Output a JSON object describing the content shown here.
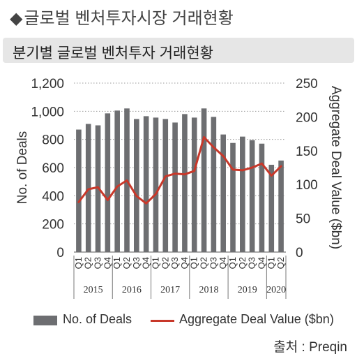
{
  "header": {
    "title": "글로벌 벤처투자시장 거래현황",
    "bullet": "◆"
  },
  "subheader": {
    "title": "분기별 글로벌 벤처투자 거래현황"
  },
  "source": "출처 : Preqin",
  "colors": {
    "bars": "#6d6e71",
    "line": "#c8382a",
    "subbar": "#e6e6e6"
  },
  "chart_data": {
    "type": "bar",
    "categories": [
      "Q1",
      "Q2",
      "Q3",
      "Q4",
      "Q1",
      "Q2",
      "Q3",
      "Q4",
      "Q1",
      "Q2",
      "Q3",
      "Q4",
      "Q1",
      "Q2",
      "Q3",
      "Q4",
      "Q1",
      "Q2",
      "Q3",
      "Q4",
      "Q1",
      "Q2"
    ],
    "years": [
      {
        "label": "2015",
        "count": 4
      },
      {
        "label": "2016",
        "count": 4
      },
      {
        "label": "2017",
        "count": 4
      },
      {
        "label": "2018",
        "count": 4
      },
      {
        "label": "2019",
        "count": 4
      },
      {
        "label": "2020",
        "count": 2
      }
    ],
    "series": [
      {
        "name": "No. of Deals",
        "type": "bar",
        "axis": "left",
        "values": [
          870,
          910,
          900,
          985,
          1005,
          1020,
          945,
          965,
          955,
          945,
          920,
          980,
          955,
          1020,
          960,
          835,
          775,
          820,
          795,
          770,
          620,
          650
        ]
      },
      {
        "name": "Aggregate Deal Value ($bn)",
        "type": "line",
        "axis": "right",
        "values": [
          74,
          93,
          96,
          77,
          97,
          106,
          83,
          72,
          86,
          112,
          116,
          115,
          120,
          170,
          155,
          142,
          122,
          121,
          125,
          131,
          113,
          127
        ]
      }
    ],
    "ylabel": "No. of Deals",
    "ylabel_right": "Aggregate Deal Value ($bn)",
    "ylim": [
      0,
      1200
    ],
    "ylim_right": [
      0,
      250
    ],
    "yticks": [
      0,
      200,
      400,
      600,
      800,
      1000,
      1200
    ],
    "yticks_right": [
      0,
      50,
      100,
      150,
      200,
      250
    ],
    "ytick_labels": [
      "0",
      "200",
      "400",
      "600",
      "800",
      "1,000",
      "1,200"
    ],
    "ytick_labels_right": [
      "0",
      "50",
      "100",
      "150",
      "200",
      "250"
    ],
    "grid": "horizontal dotted",
    "legend_position": "bottom"
  }
}
